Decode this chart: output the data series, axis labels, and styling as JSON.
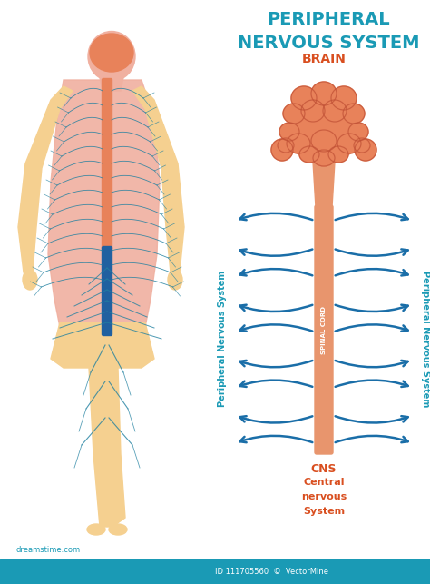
{
  "title_line1": "PERIPHERAL",
  "title_line2": "NERVOUS SYSTEM",
  "title_color": "#1a9ab5",
  "title_fontsize": 14,
  "brain_label": "BRAIN",
  "brain_label_color": "#d94f20",
  "spinal_cord_label": "SPINAL CORD",
  "spinal_cord_color": "#e8956d",
  "cns_label_line1": "CNS",
  "cns_label_line2": "Central",
  "cns_label_line3": "nervous",
  "cns_label_line4": "System",
  "cns_label_color": "#d94f20",
  "pns_label": "Peripheral Nervous System",
  "pns_label_color": "#1a9ab5",
  "arrow_color": "#1a6ea8",
  "brain_fill_color": "#e8825a",
  "brain_lobe_outline": "#c05035",
  "brain_light_color": "#f0a080",
  "body_skin_color": "#f5d090",
  "body_upper_color": "#f0b0a0",
  "nerve_color": "#2080a0",
  "watermark_color": "#1a9ab5",
  "background_color": "#ffffff",
  "num_nerve_pairs": 9,
  "figsize": [
    4.74,
    6.43
  ],
  "dpi": 100
}
